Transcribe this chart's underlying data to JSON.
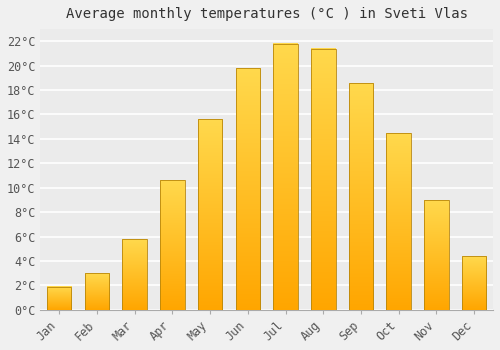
{
  "title": "Average monthly temperatures (°C ) in Sveti Vlas",
  "months": [
    "Jan",
    "Feb",
    "Mar",
    "Apr",
    "May",
    "Jun",
    "Jul",
    "Aug",
    "Sep",
    "Oct",
    "Nov",
    "Dec"
  ],
  "values": [
    1.9,
    3.0,
    5.8,
    10.6,
    15.6,
    19.8,
    21.8,
    21.4,
    18.6,
    14.5,
    9.0,
    4.4
  ],
  "bar_color_top": "#FFD966",
  "bar_color_bottom": "#FFA500",
  "bar_edge_color": "#B8860B",
  "ylim": [
    0,
    23
  ],
  "yticks": [
    0,
    2,
    4,
    6,
    8,
    10,
    12,
    14,
    16,
    18,
    20,
    22
  ],
  "ytick_labels": [
    "0°C",
    "2°C",
    "4°C",
    "6°C",
    "8°C",
    "10°C",
    "12°C",
    "14°C",
    "16°C",
    "18°C",
    "20°C",
    "22°C"
  ],
  "background_color": "#f0f0f0",
  "plot_bg_color": "#ebebeb",
  "grid_color": "#ffffff",
  "title_fontsize": 10,
  "tick_fontsize": 8.5,
  "bar_width": 0.65,
  "figsize": [
    5.0,
    3.5
  ],
  "dpi": 100
}
